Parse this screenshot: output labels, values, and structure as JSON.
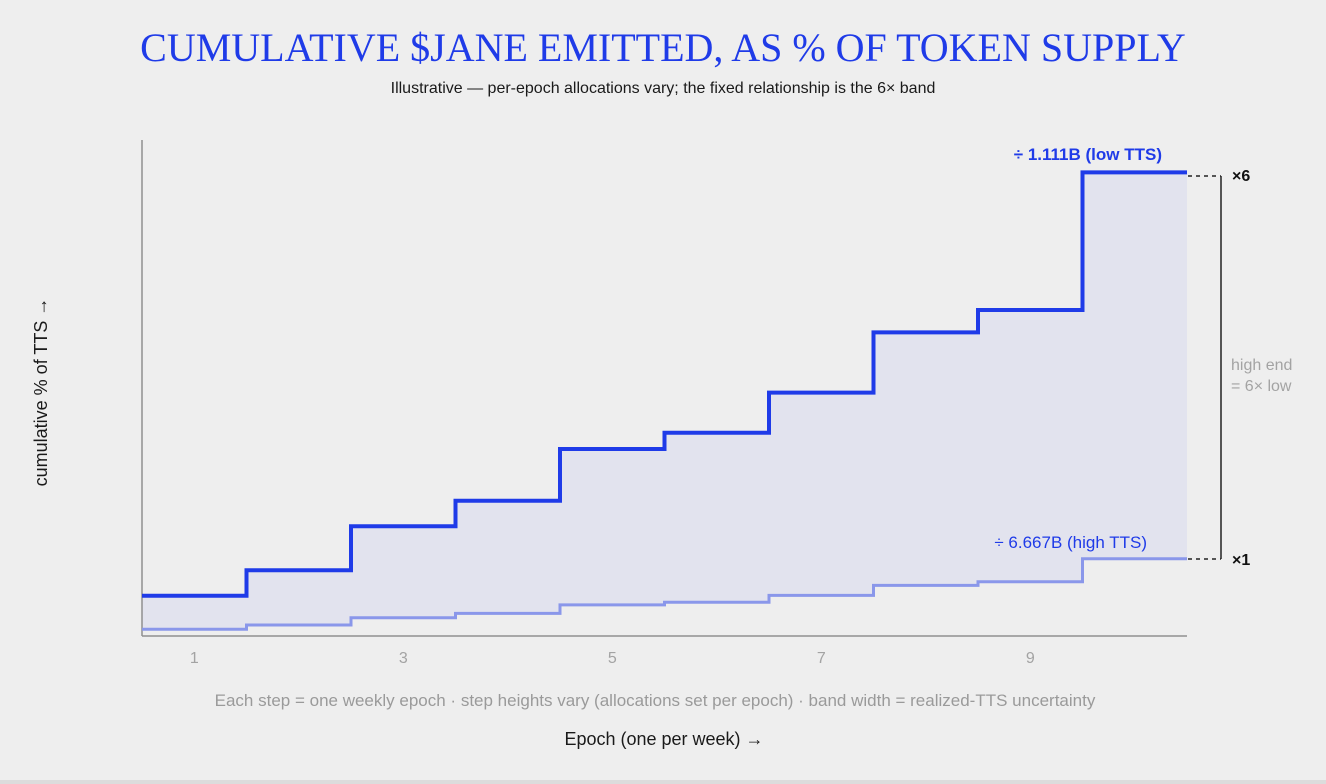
{
  "chart_data": {
    "type": "line",
    "step": "hv",
    "title": "CUMULATIVE $JANE EMITTED, AS % OF TOKEN SUPPLY",
    "subtitle": "Illustrative — per-epoch allocations vary; the fixed relationship is the 6× band",
    "xlabel": "Epoch (one per week) →",
    "ylabel": "cumulative % of TTS →",
    "caption": "Each step = one weekly epoch · step heights vary (allocations set per epoch) · band width = realized-TTS uncertainty",
    "x": [
      1,
      2,
      3,
      4,
      5,
      6,
      7,
      8,
      9,
      10
    ],
    "xticks": [
      "1",
      "3",
      "5",
      "7",
      "9"
    ],
    "xtick_values": [
      1,
      3,
      5,
      7,
      9
    ],
    "xlim": [
      0.5,
      10.5
    ],
    "ylim": [
      0,
      6.42
    ],
    "grid": false,
    "band_shaded": true,
    "series": [
      {
        "name": "÷ 1.111B (low TTS)",
        "color": "#1f3be8",
        "values": [
          0.52,
          0.85,
          1.42,
          1.75,
          2.42,
          2.63,
          3.15,
          3.93,
          4.22,
          6.0
        ]
      },
      {
        "name": "÷ 6.667B (high TTS)",
        "color": "#8a97ea",
        "values": [
          0.087,
          0.142,
          0.237,
          0.292,
          0.403,
          0.438,
          0.525,
          0.655,
          0.703,
          1.0
        ]
      }
    ],
    "multipliers": {
      "high_label": "×6",
      "low_label": "×1"
    },
    "band_note": [
      "high end",
      "= 6× low"
    ]
  }
}
